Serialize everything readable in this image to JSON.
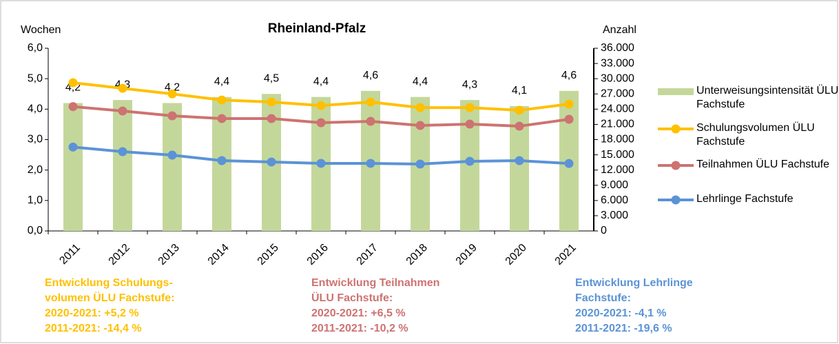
{
  "chart_data": {
    "type": "bar_line",
    "title": "Rheinland-Pfalz",
    "ylabel": "Wochen",
    "y2label": "Anzahl",
    "categories": [
      "2011",
      "2012",
      "2013",
      "2014",
      "2015",
      "2016",
      "2017",
      "2018",
      "2019",
      "2020",
      "2021"
    ],
    "ylim": [
      0,
      6
    ],
    "yticks": [
      {
        "value": 0,
        "label": "0,0"
      },
      {
        "value": 1,
        "label": "1,0"
      },
      {
        "value": 2,
        "label": "2,0"
      },
      {
        "value": 3,
        "label": "3,0"
      },
      {
        "value": 4,
        "label": "4,0"
      },
      {
        "value": 5,
        "label": "5,0"
      },
      {
        "value": 6,
        "label": "6,0"
      }
    ],
    "y2lim": [
      0,
      36000
    ],
    "y2ticks": [
      0,
      {
        "value": 3000,
        "label": "3.000"
      },
      {
        "value": 6000,
        "label": "6.000"
      },
      {
        "value": 9000,
        "label": "9.000"
      },
      {
        "value": 12000,
        "label": "12.000"
      },
      {
        "value": 15000,
        "label": "15.000"
      },
      {
        "value": 18000,
        "label": "18.000"
      },
      {
        "value": 21000,
        "label": "21.000"
      },
      {
        "value": 24000,
        "label": "24.000"
      },
      {
        "value": 27000,
        "label": "27.000"
      },
      {
        "value": 30000,
        "label": "30.000"
      },
      {
        "value": 33000,
        "label": "33.000"
      },
      {
        "value": 36000,
        "label": "36.000"
      }
    ],
    "series": [
      {
        "name": "Unterweisungsintensität ÜLU Fachstufe",
        "type": "bar",
        "color": "#c4d79b",
        "values": [
          4.2,
          4.3,
          4.2,
          4.4,
          4.5,
          4.4,
          4.6,
          4.4,
          4.3,
          4.1,
          4.6
        ],
        "value_labels": [
          "4,2",
          "4,3",
          "4,2",
          "4,4",
          "4,5",
          "4,4",
          "4,6",
          "4,4",
          "4,3",
          "4,1",
          "4,6"
        ]
      },
      {
        "name": "Schulungsvolumen ÜLU Fachstufe",
        "type": "line",
        "axis": "y2",
        "color": "#ffc000",
        "values": [
          29200,
          28100,
          27000,
          25800,
          25400,
          24700,
          25400,
          24300,
          24300,
          23770,
          25000
        ]
      },
      {
        "name": "Teilnahmen ÜLU Fachstufe",
        "type": "line",
        "axis": "y2",
        "color": "#cd7371",
        "values": [
          24500,
          23640,
          22690,
          22140,
          22140,
          21330,
          21600,
          20780,
          21060,
          20650,
          22000
        ]
      },
      {
        "name": "Lehrlinge Fachstufe",
        "type": "line",
        "axis": "y2",
        "color": "#5b93d6",
        "values": [
          16530,
          15620,
          14940,
          13860,
          13590,
          13320,
          13320,
          13180,
          13720,
          13860,
          13290
        ]
      }
    ],
    "annotations": [
      {
        "color": "#ffc000",
        "lines": [
          "Entwicklung Schulungs-",
          "volumen ÜLU Fachstufe:",
          "2020-2021:  +5,2 %",
          "2011-2021: -14,4 %"
        ]
      },
      {
        "color": "#cd7371",
        "lines": [
          "Entwicklung Teilnahmen",
          "ÜLU Fachstufe:",
          "2020-2021:  +6,5 %",
          "2011-2021: -10,2 %"
        ]
      },
      {
        "color": "#5b93d6",
        "lines": [
          "Entwicklung Lehrlinge",
          "Fachstufe:",
          "2020-2021:  -4,1 %",
          "2011-2021: -19,6 %"
        ]
      }
    ]
  }
}
